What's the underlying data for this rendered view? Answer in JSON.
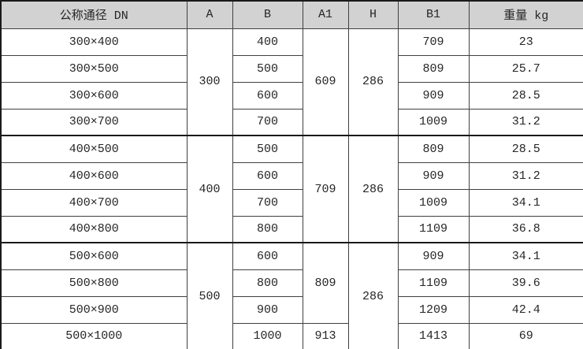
{
  "table": {
    "title": "dimension-weight-spec-table",
    "headers": {
      "dn": "公称通径 DN",
      "a": "A",
      "b": "B",
      "a1": "A1",
      "h": "H",
      "b1": "B1",
      "weight": "重量 kg"
    },
    "col_names": [
      "dn",
      "a",
      "b",
      "a1",
      "h",
      "b1",
      "weight"
    ],
    "section_start_rows": [
      4,
      8
    ],
    "rows": [
      [
        {
          "t": "300×400"
        },
        {
          "t": "300",
          "rs": 4
        },
        {
          "t": "400"
        },
        {
          "t": "609",
          "rs": 4
        },
        {
          "t": "286",
          "rs": 4
        },
        {
          "t": "709"
        },
        {
          "t": "23"
        }
      ],
      [
        {
          "t": "300×500"
        },
        {
          "t": "500"
        },
        {
          "t": "809"
        },
        {
          "t": "25.7"
        }
      ],
      [
        {
          "t": "300×600"
        },
        {
          "t": "600"
        },
        {
          "t": "909"
        },
        {
          "t": "28.5"
        }
      ],
      [
        {
          "t": "300×700"
        },
        {
          "t": "700"
        },
        {
          "t": "1009"
        },
        {
          "t": "31.2"
        }
      ],
      [
        {
          "t": "400×500"
        },
        {
          "t": "400",
          "rs": 4
        },
        {
          "t": "500"
        },
        {
          "t": "709",
          "rs": 4
        },
        {
          "t": "286",
          "rs": 4
        },
        {
          "t": "809"
        },
        {
          "t": "28.5"
        }
      ],
      [
        {
          "t": "400×600"
        },
        {
          "t": "600"
        },
        {
          "t": "909"
        },
        {
          "t": "31.2"
        }
      ],
      [
        {
          "t": "400×700"
        },
        {
          "t": "700"
        },
        {
          "t": "1009"
        },
        {
          "t": "34.1"
        }
      ],
      [
        {
          "t": "400×800"
        },
        {
          "t": "800"
        },
        {
          "t": "1109"
        },
        {
          "t": "36.8"
        }
      ],
      [
        {
          "t": "500×600"
        },
        {
          "t": "500",
          "rs": 4
        },
        {
          "t": "600"
        },
        {
          "t": "809",
          "rs": 3
        },
        {
          "t": "286",
          "rs": 4
        },
        {
          "t": "909"
        },
        {
          "t": "34.1"
        }
      ],
      [
        {
          "t": "500×800"
        },
        {
          "t": "800"
        },
        {
          "t": "1109"
        },
        {
          "t": "39.6"
        }
      ],
      [
        {
          "t": "500×900"
        },
        {
          "t": "900"
        },
        {
          "t": "1209"
        },
        {
          "t": "42.4"
        }
      ],
      [
        {
          "t": "500×1000"
        },
        {
          "t": "1000"
        },
        {
          "t": "913"
        },
        {
          "t": "1413"
        },
        {
          "t": "69"
        }
      ]
    ],
    "colors": {
      "header_bg": "#d2d2d2",
      "grid_line": "#404040",
      "section_line": "#1a1a1a",
      "text": "#262626",
      "body_bg": "#ffffff"
    }
  }
}
